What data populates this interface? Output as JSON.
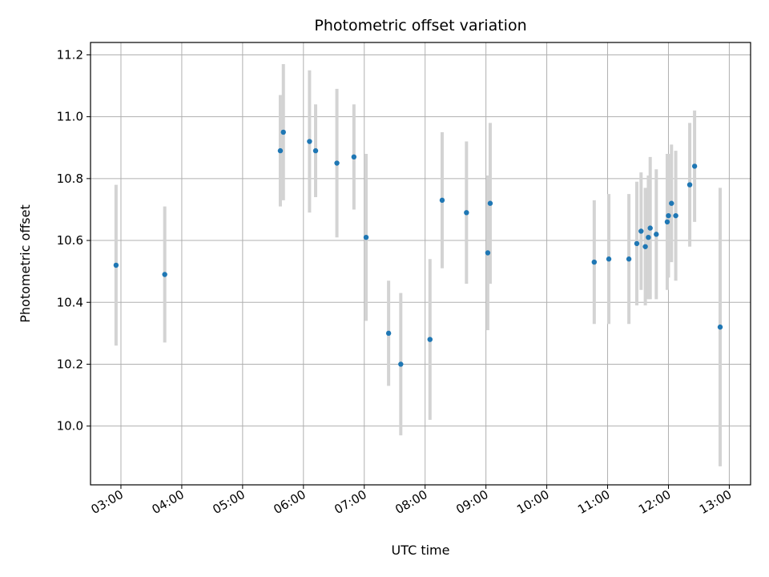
{
  "chart_data": {
    "type": "scatter",
    "title": "Photometric offset variation",
    "xlabel": "UTC time",
    "ylabel": "Photometric offset",
    "x_unit": "hours UTC",
    "xlim": [
      2.5,
      13.35
    ],
    "ylim": [
      9.81,
      11.24
    ],
    "x_ticks": [
      3,
      4,
      5,
      6,
      7,
      8,
      9,
      10,
      11,
      12,
      13
    ],
    "x_tick_labels": [
      "03:00",
      "04:00",
      "05:00",
      "06:00",
      "07:00",
      "08:00",
      "09:00",
      "10:00",
      "11:00",
      "12:00",
      "13:00"
    ],
    "y_ticks": [
      10.0,
      10.2,
      10.4,
      10.6,
      10.8,
      11.0,
      11.2
    ],
    "y_tick_labels": [
      "10.0",
      "10.2",
      "10.4",
      "10.6",
      "10.8",
      "11.0",
      "11.2"
    ],
    "grid": true,
    "marker_color": "#1f77b4",
    "errorbar_color": "#d3d3d3",
    "points": [
      {
        "x": 2.92,
        "y": 10.52,
        "err": 0.26
      },
      {
        "x": 3.72,
        "y": 10.49,
        "err": 0.22
      },
      {
        "x": 5.62,
        "y": 10.89,
        "err": 0.18
      },
      {
        "x": 5.67,
        "y": 10.95,
        "err": 0.22
      },
      {
        "x": 6.1,
        "y": 10.92,
        "err": 0.23
      },
      {
        "x": 6.2,
        "y": 10.89,
        "err": 0.15
      },
      {
        "x": 6.55,
        "y": 10.85,
        "err": 0.24
      },
      {
        "x": 6.83,
        "y": 10.87,
        "err": 0.17
      },
      {
        "x": 7.03,
        "y": 10.61,
        "err": 0.27
      },
      {
        "x": 7.4,
        "y": 10.3,
        "err": 0.17
      },
      {
        "x": 7.6,
        "y": 10.2,
        "err": 0.23
      },
      {
        "x": 8.08,
        "y": 10.28,
        "err": 0.26
      },
      {
        "x": 8.28,
        "y": 10.73,
        "err": 0.22
      },
      {
        "x": 8.68,
        "y": 10.69,
        "err": 0.23
      },
      {
        "x": 9.03,
        "y": 10.56,
        "err": 0.25
      },
      {
        "x": 9.07,
        "y": 10.72,
        "err": 0.26
      },
      {
        "x": 10.78,
        "y": 10.53,
        "err": 0.2
      },
      {
        "x": 11.02,
        "y": 10.54,
        "err": 0.21
      },
      {
        "x": 11.35,
        "y": 10.54,
        "err": 0.21
      },
      {
        "x": 11.48,
        "y": 10.59,
        "err": 0.2
      },
      {
        "x": 11.55,
        "y": 10.63,
        "err": 0.19
      },
      {
        "x": 11.62,
        "y": 10.58,
        "err": 0.19
      },
      {
        "x": 11.67,
        "y": 10.61,
        "err": 0.2
      },
      {
        "x": 11.7,
        "y": 10.64,
        "err": 0.23
      },
      {
        "x": 11.8,
        "y": 10.62,
        "err": 0.21
      },
      {
        "x": 11.98,
        "y": 10.66,
        "err": 0.22
      },
      {
        "x": 12.0,
        "y": 10.68,
        "err": 0.2
      },
      {
        "x": 12.05,
        "y": 10.72,
        "err": 0.19
      },
      {
        "x": 12.12,
        "y": 10.68,
        "err": 0.21
      },
      {
        "x": 12.35,
        "y": 10.78,
        "err": 0.2
      },
      {
        "x": 12.43,
        "y": 10.84,
        "err": 0.18
      },
      {
        "x": 12.85,
        "y": 10.32,
        "err": 0.45
      }
    ]
  }
}
